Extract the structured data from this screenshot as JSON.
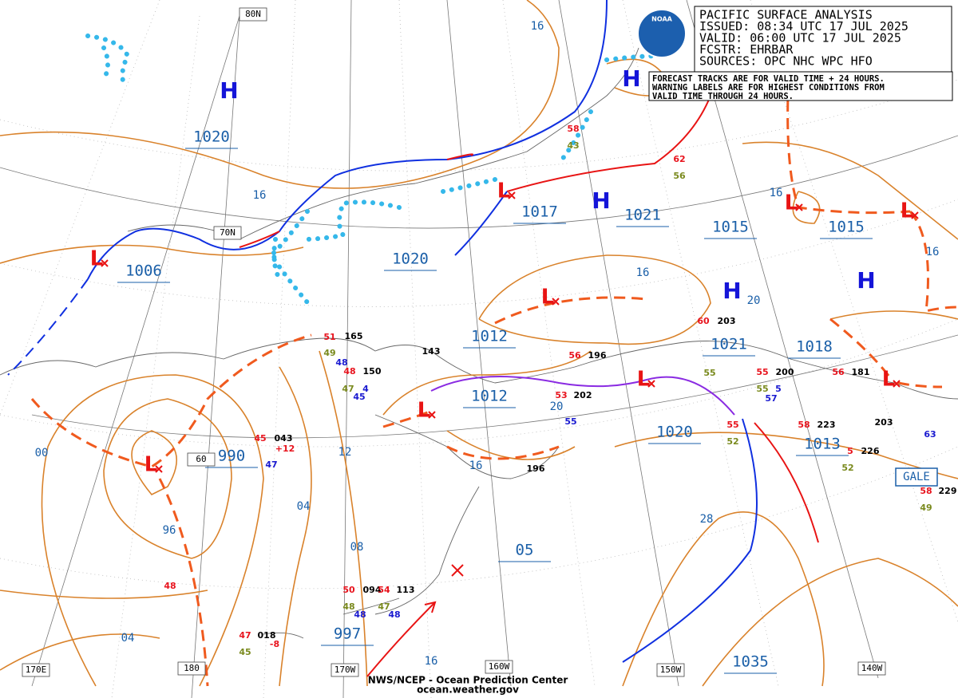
{
  "header": {
    "lines": [
      "PACIFIC SURFACE ANALYSIS",
      "ISSUED: 08:34 UTC 17 JUL 2025",
      "VALID:  06:00 UTC 17 JUL 2025",
      "FCSTR:  EHRBAR",
      "SOURCES: OPC NHC WPC HFO"
    ],
    "logo": "NOAA"
  },
  "notice": [
    "FORECAST TRACKS ARE FOR VALID TIME + 24 HOURS.",
    "WARNING LABELS ARE FOR HIGHEST CONDITIONS FROM",
    "VALID TIME THROUGH 24 HOURS."
  ],
  "footer": [
    "NWS/NCEP - Ocean Prediction Center",
    "ocean.weather.gov"
  ],
  "grid_labels": [
    "80N",
    "70N",
    "60",
    "170E",
    "180",
    "170W",
    "160W",
    "150W",
    "140W"
  ],
  "pressure_labels": [
    "1020",
    "1006",
    "1020",
    "1017",
    "1021",
    "1015",
    "1015",
    "1012",
    "1012",
    "1021",
    "1018",
    "1020",
    "1013",
    "990",
    "05",
    "997",
    "1035"
  ],
  "isobar_labels": [
    "16",
    "16",
    "16",
    "16",
    "16",
    "20",
    "20",
    "12",
    "16",
    "00",
    "04",
    "96",
    "08",
    "28",
    "04",
    "16"
  ],
  "highs": [
    "H",
    "H",
    "H",
    "H",
    "H"
  ],
  "lows": [
    "L",
    "L",
    "L",
    "L",
    "L",
    "L",
    "L",
    "L",
    "L"
  ],
  "warning": "GALE",
  "stations": [
    "51",
    "165",
    "49",
    "48",
    "48",
    "150",
    "47",
    "4",
    "45",
    "143",
    "56",
    "196",
    "53",
    "202",
    "55",
    "60",
    "203",
    "55",
    "55",
    "200",
    "55",
    "5",
    "57",
    "56",
    "181",
    "62",
    "56",
    "58",
    "43",
    "55",
    "52",
    "58",
    "223",
    "5",
    "226",
    "52",
    "203",
    "63",
    "58",
    "229",
    "49",
    "45",
    "043",
    "+12",
    "47",
    "196",
    "48",
    "50",
    "094",
    "54",
    "113",
    "48",
    "47",
    "48",
    "48",
    "47",
    "018",
    "45",
    "-8"
  ]
}
